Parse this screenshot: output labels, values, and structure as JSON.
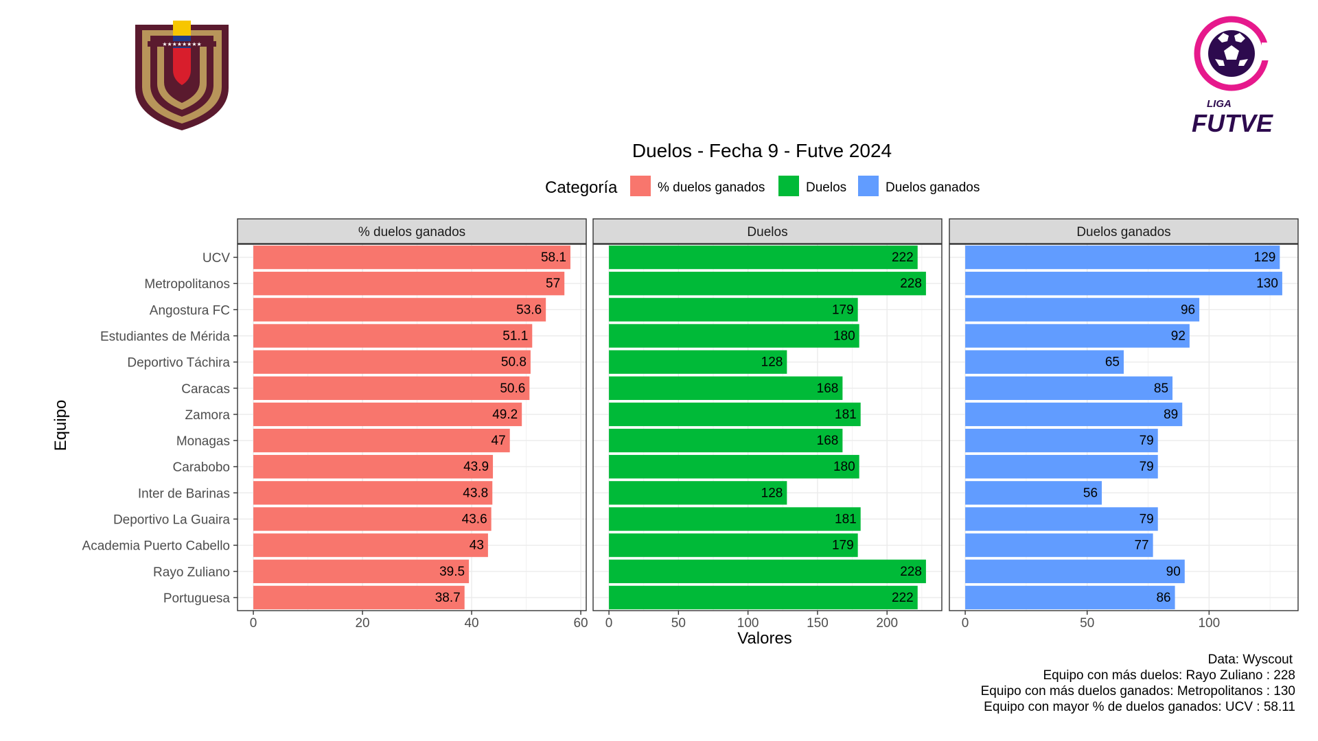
{
  "chart_data": {
    "type": "bar",
    "orientation": "horizontal",
    "title": "Duelos - Fecha 9 - Futve 2024",
    "xlabel": "Valores",
    "ylabel": "Equipo",
    "legend": {
      "title": "Categoría",
      "placement": "top",
      "entries": [
        {
          "name": "% duelos ganados",
          "color": "#F8766D"
        },
        {
          "name": "Duelos",
          "color": "#00BA38"
        },
        {
          "name": "Duelos ganados",
          "color": "#619CFF"
        }
      ]
    },
    "categories": [
      "UCV",
      "Metropolitanos",
      "Angostura FC",
      "Estudiantes de Mérida",
      "Deportivo Táchira",
      "Caracas",
      "Zamora",
      "Monagas",
      "Carabobo",
      "Inter de Barinas",
      "Deportivo La Guaira",
      "Academia Puerto Cabello",
      "Rayo Zuliano",
      "Portuguesa"
    ],
    "grid": true,
    "panels": [
      {
        "name": "% duelos ganados",
        "color": "#F8766D",
        "xlim": [
          -2.9,
          61
        ],
        "ticks": [
          0,
          20,
          40,
          60
        ],
        "values": [
          58.1,
          57,
          53.6,
          51.1,
          50.8,
          50.6,
          49.2,
          47,
          43.9,
          43.8,
          43.6,
          43,
          39.5,
          38.7
        ],
        "labels": [
          "58.1",
          "57",
          "53.6",
          "51.1",
          "50.8",
          "50.6",
          "49.2",
          "47",
          "43.9",
          "43.8",
          "43.6",
          "43",
          "39.5",
          "38.7"
        ]
      },
      {
        "name": "Duelos",
        "color": "#00BA38",
        "xlim": [
          -11.4,
          239.4
        ],
        "ticks": [
          0,
          50,
          100,
          150,
          200
        ],
        "values": [
          222,
          228,
          179,
          180,
          128,
          168,
          181,
          168,
          180,
          128,
          181,
          179,
          228,
          222
        ],
        "labels": [
          "222",
          "228",
          "179",
          "180",
          "128",
          "168",
          "181",
          "168",
          "180",
          "128",
          "181",
          "179",
          "228",
          "222"
        ]
      },
      {
        "name": "Duelos ganados",
        "color": "#619CFF",
        "xlim": [
          -6.5,
          136.5
        ],
        "ticks": [
          0,
          50,
          100
        ],
        "values": [
          129,
          130,
          96,
          92,
          65,
          85,
          89,
          79,
          79,
          56,
          79,
          77,
          90,
          86
        ],
        "labels": [
          "129",
          "130",
          "96",
          "92",
          "65",
          "85",
          "89",
          "79",
          "79",
          "56",
          "79",
          "77",
          "90",
          "86"
        ]
      }
    ],
    "caption": [
      "Data: Wyscout",
      "Equipo con más duelos: Rayo Zuliano : 228",
      "Equipo con más duelos ganados: Metropolitanos : 130",
      "Equipo con mayor % de duelos ganados: UCV : 58.11"
    ]
  },
  "logos": {
    "left": {
      "icon": "venezuelan-football-federation-crest"
    },
    "right": {
      "icon": "liga-futve-logo",
      "text_top": "LIGA",
      "text_main": "FUTVE"
    }
  }
}
